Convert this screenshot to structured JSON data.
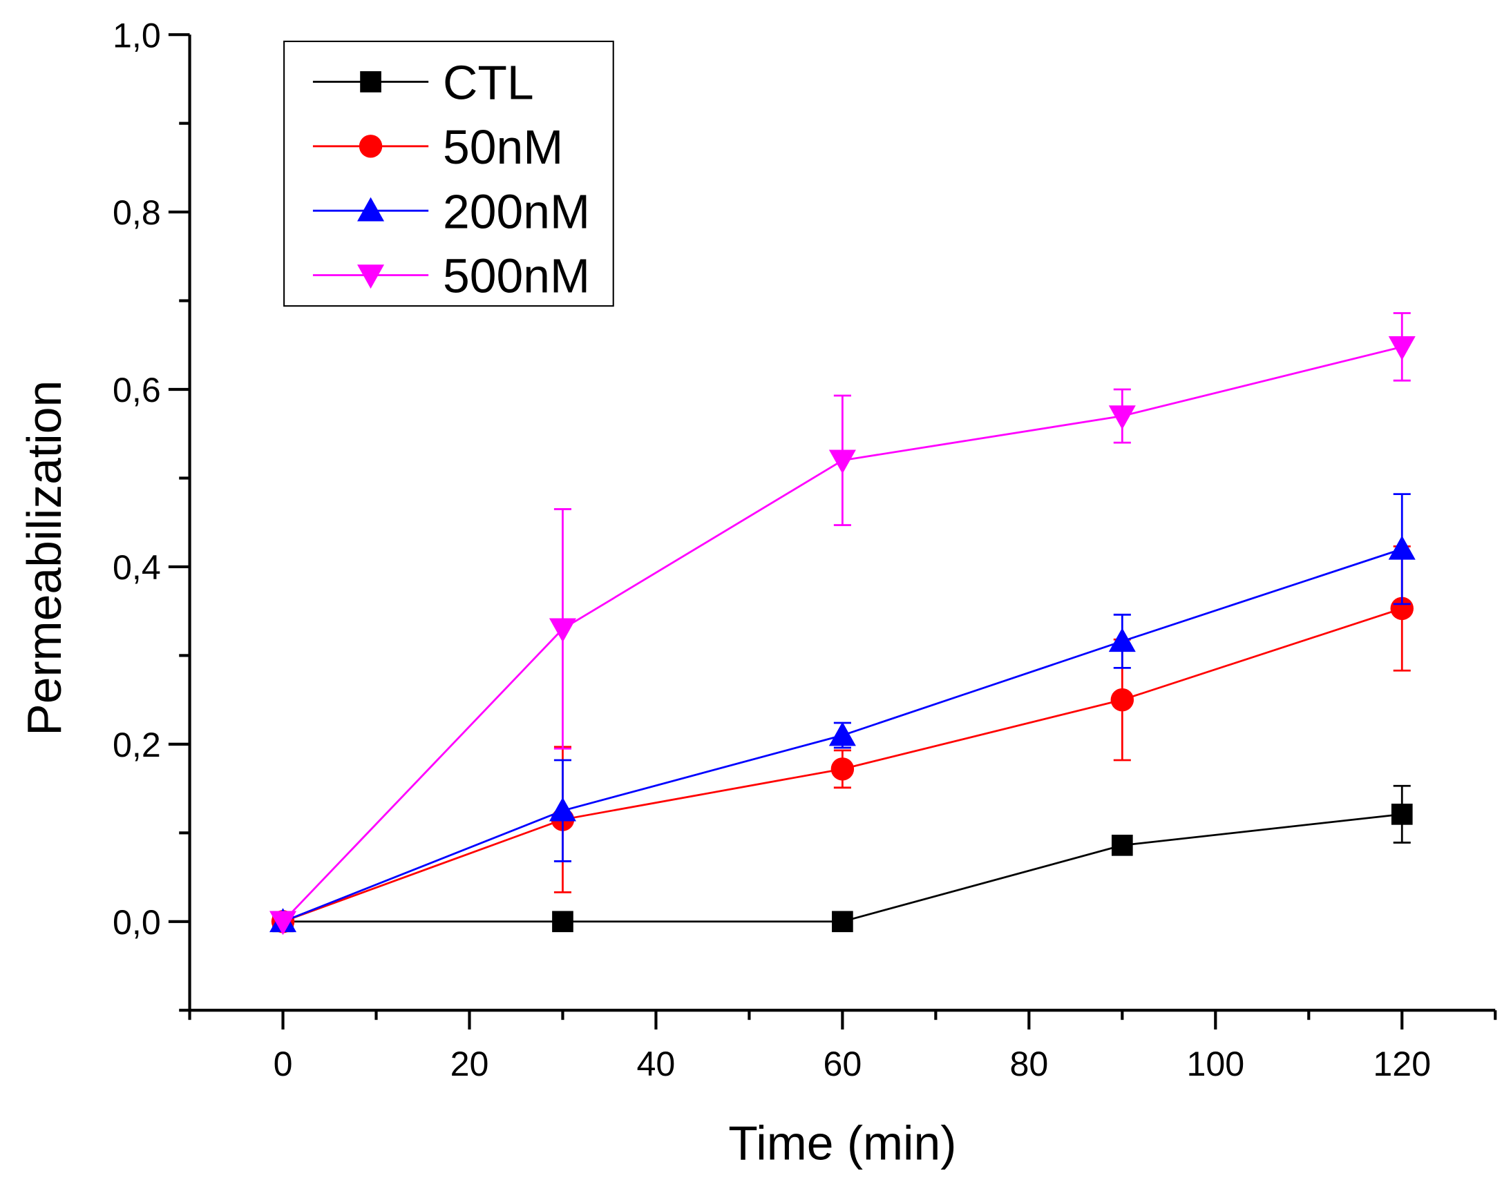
{
  "chart_data": {
    "type": "line",
    "title": "",
    "xlabel": "Time (min)",
    "ylabel": "Permeabilization",
    "xlim": [
      -10,
      130
    ],
    "ylim": [
      -0.1,
      1.0
    ],
    "xticks": [
      0,
      20,
      40,
      60,
      80,
      100,
      120
    ],
    "xtick_labels": [
      "0",
      "20",
      "40",
      "60",
      "80",
      "100",
      "120"
    ],
    "yticks": [
      0.0,
      0.2,
      0.4,
      0.6,
      0.8,
      1.0
    ],
    "ytick_labels": [
      "0,0",
      "0,2",
      "0,4",
      "0,6",
      "0,8",
      "1,0"
    ],
    "grid": false,
    "legend_position": "top-left",
    "x": [
      0,
      30,
      60,
      90,
      120
    ],
    "series": [
      {
        "name": "CTL",
        "color": "#000000",
        "marker": "square",
        "values": [
          0,
          0,
          0,
          0.086,
          0.121
        ],
        "errors": [
          0,
          0,
          0,
          0.008,
          0.032
        ]
      },
      {
        "name": "50nM",
        "color": "#ff0000",
        "marker": "circle",
        "values": [
          0,
          0.115,
          0.172,
          0.25,
          0.353
        ],
        "errors": [
          0,
          0.082,
          0.021,
          0.068,
          0.07
        ]
      },
      {
        "name": "200nM",
        "color": "#0000ff",
        "marker": "triangle-up",
        "values": [
          0,
          0.125,
          0.21,
          0.316,
          0.42
        ],
        "errors": [
          0,
          0.057,
          0.014,
          0.03,
          0.062
        ]
      },
      {
        "name": "500nM",
        "color": "#ff00ff",
        "marker": "triangle-down",
        "values": [
          0,
          0.33,
          0.52,
          0.57,
          0.648
        ],
        "errors": [
          0,
          0.135,
          0.073,
          0.03,
          0.038
        ]
      }
    ]
  }
}
